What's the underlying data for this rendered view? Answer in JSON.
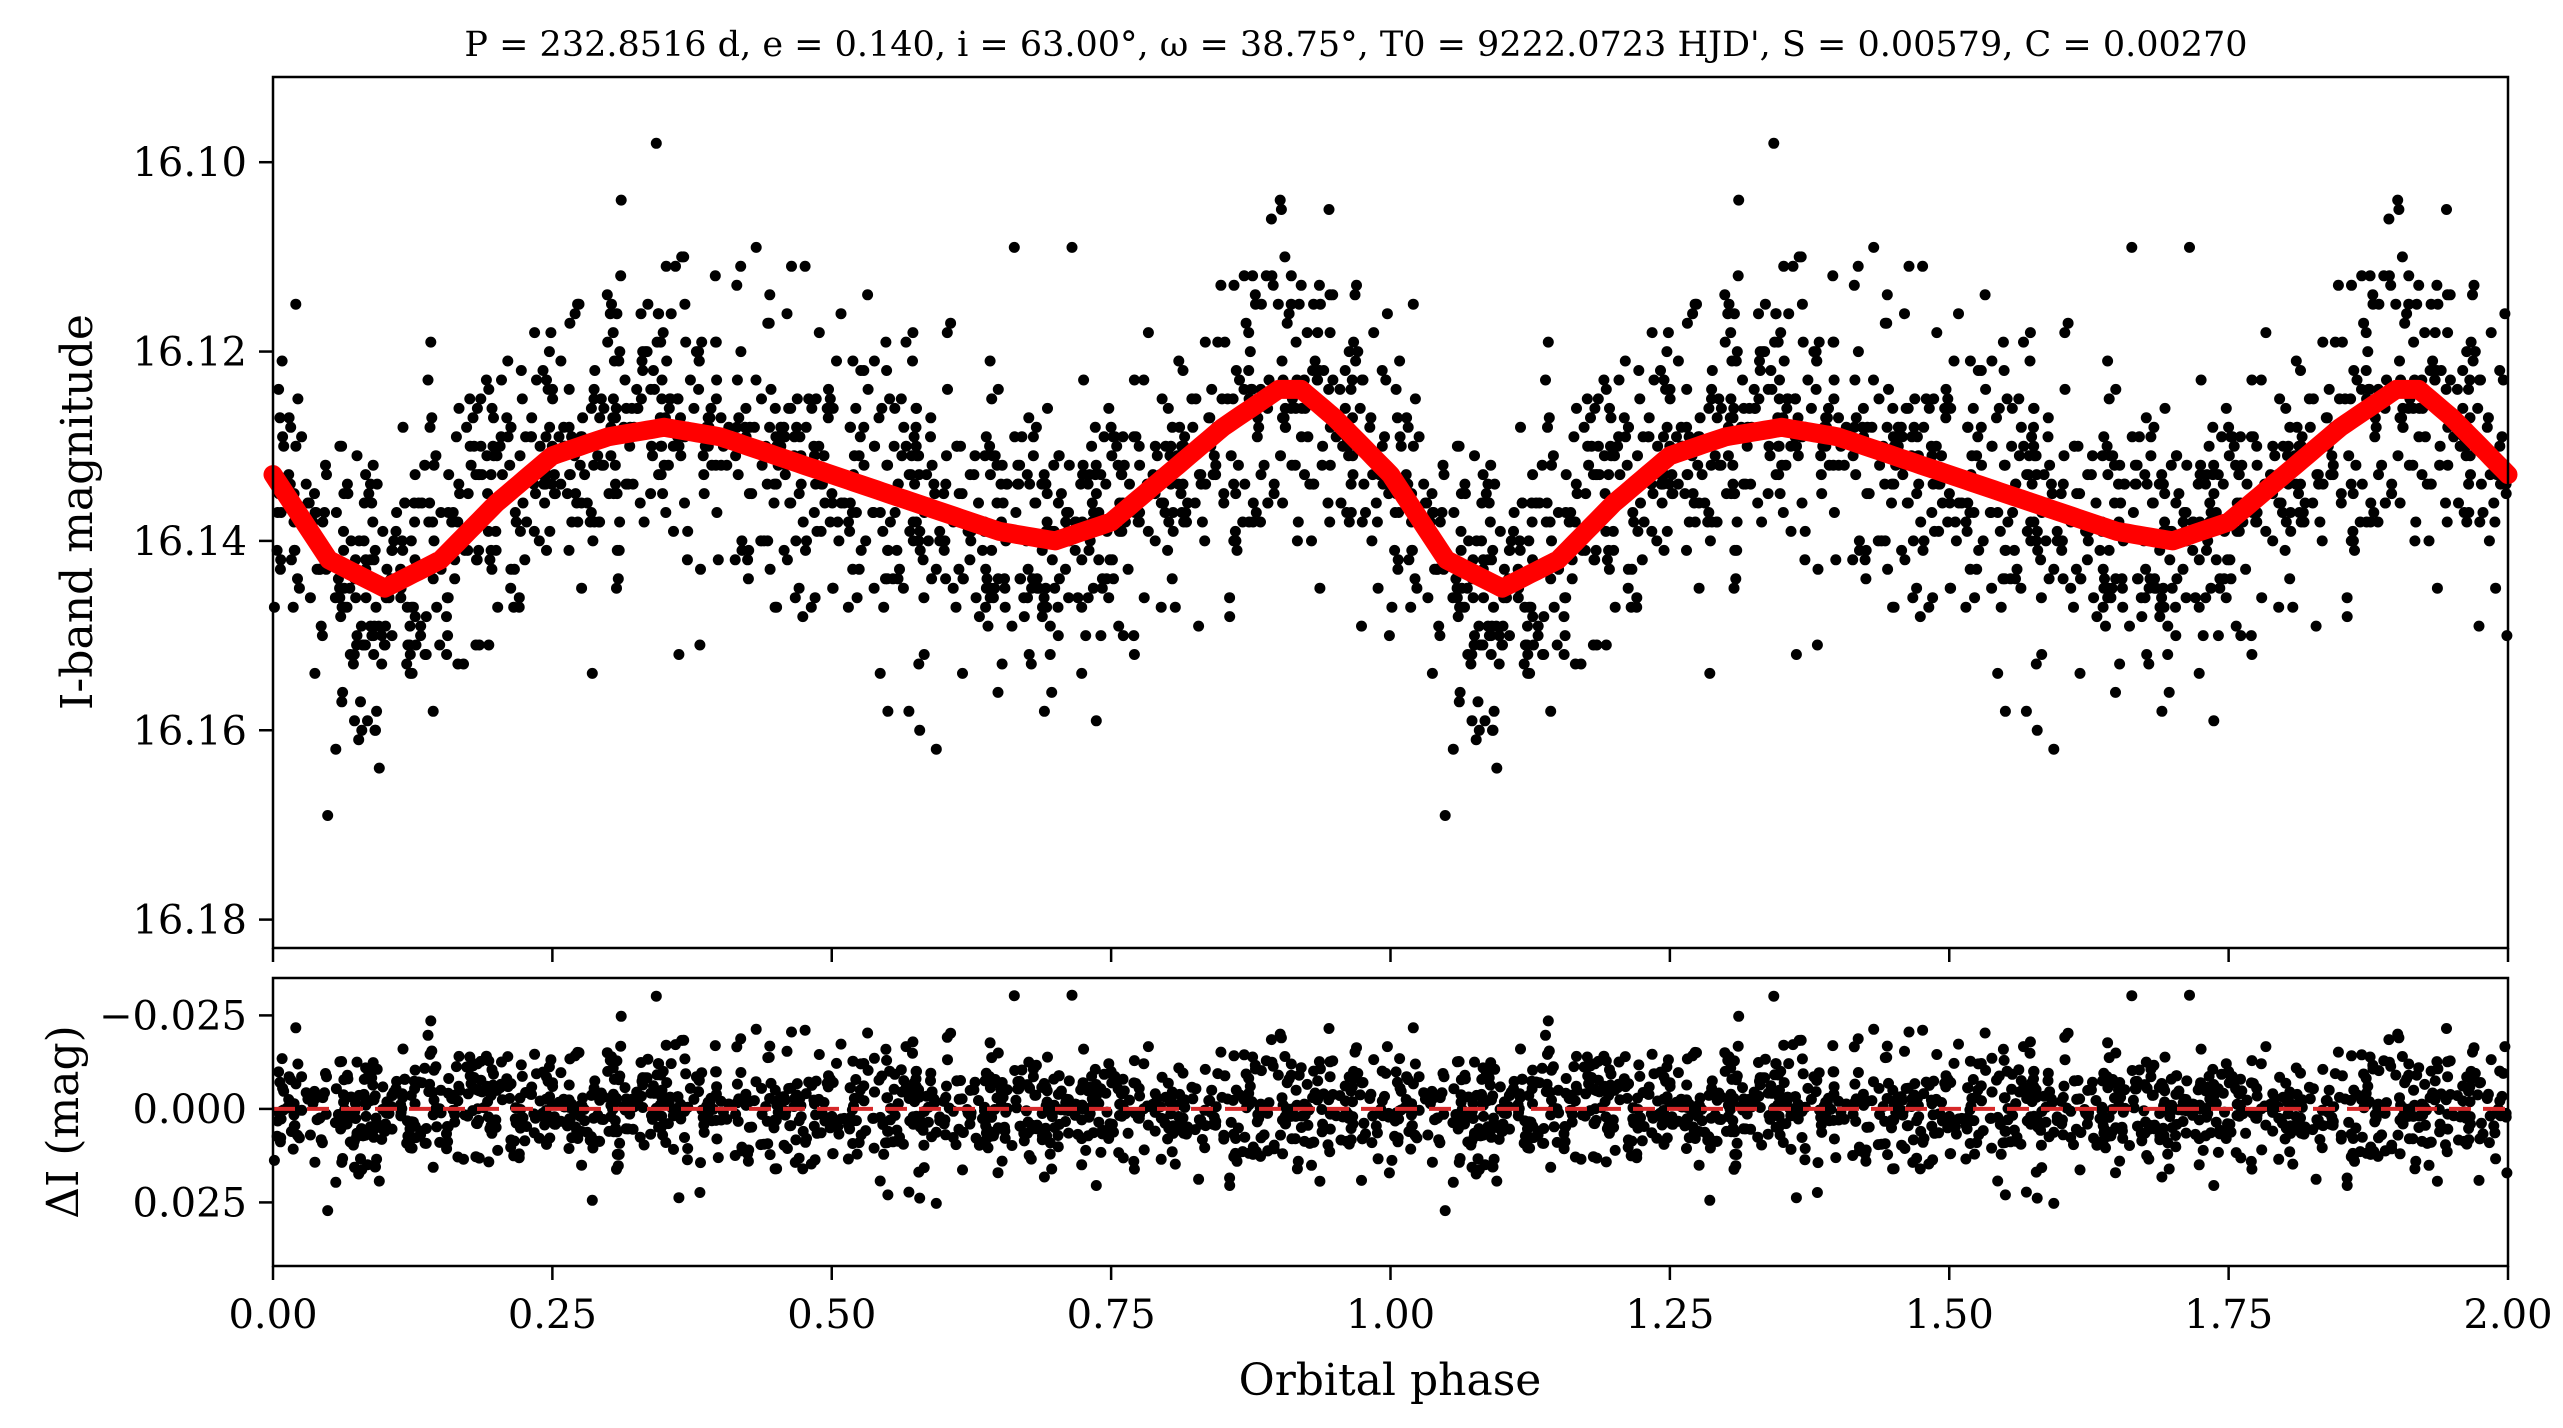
{
  "chart_data": [
    {
      "type": "scatter",
      "title": "P = 232.8516 d, e = 0.140, i = 63.00°, ω = 38.75°, T0 = 9222.0723 HJD', S = 0.00579, C = 0.00270",
      "xlabel": "",
      "ylabel": "I-band magnitude",
      "xlim": [
        0.0,
        2.0
      ],
      "ylim": [
        16.183,
        16.091
      ],
      "y_inverted": true,
      "grid": false,
      "yticks": [
        "16.10",
        "16.12",
        "16.14",
        "16.16",
        "16.18"
      ],
      "ytick_values": [
        16.1,
        16.12,
        16.14,
        16.16,
        16.18
      ],
      "colors": {
        "points": "#000000",
        "model": "#ff0000"
      },
      "model_curve": {
        "x": [
          0.0,
          0.05,
          0.1,
          0.15,
          0.2,
          0.25,
          0.3,
          0.35,
          0.4,
          0.45,
          0.5,
          0.55,
          0.6,
          0.65,
          0.7,
          0.75,
          0.8,
          0.85,
          0.9,
          0.92,
          0.95,
          1.0,
          1.05,
          1.1,
          1.15,
          1.2,
          1.25,
          1.3,
          1.35,
          1.4,
          1.45,
          1.5,
          1.55,
          1.6,
          1.65,
          1.7,
          1.75,
          1.8,
          1.85,
          1.9,
          1.92,
          1.95,
          2.0
        ],
        "y": [
          16.133,
          16.142,
          16.145,
          16.142,
          16.136,
          16.131,
          16.129,
          16.128,
          16.129,
          16.131,
          16.133,
          16.135,
          16.137,
          16.139,
          16.14,
          16.138,
          16.133,
          16.128,
          16.124,
          16.124,
          16.127,
          16.133,
          16.142,
          16.145,
          16.142,
          16.136,
          16.131,
          16.129,
          16.128,
          16.129,
          16.131,
          16.133,
          16.135,
          16.137,
          16.139,
          16.14,
          16.138,
          16.133,
          16.128,
          16.124,
          16.124,
          16.127,
          16.133
        ]
      },
      "observations": {
        "count": 2400,
        "scatter_sigma_mag": 0.008
      }
    },
    {
      "type": "scatter",
      "xlabel": "Orbital phase",
      "ylabel": "ΔI (mag)",
      "xlim": [
        0.0,
        2.0
      ],
      "ylim": [
        0.042,
        -0.035
      ],
      "y_inverted": true,
      "grid": false,
      "xticks": [
        "0.00",
        "0.25",
        "0.50",
        "0.75",
        "1.00",
        "1.25",
        "1.50",
        "1.75",
        "2.00"
      ],
      "xtick_values": [
        0.0,
        0.25,
        0.5,
        0.75,
        1.0,
        1.25,
        1.5,
        1.75,
        2.0
      ],
      "yticks": [
        "−0.025",
        "0.000",
        "0.025"
      ],
      "ytick_values": [
        -0.025,
        0.0,
        0.025
      ],
      "colors": {
        "points": "#000000",
        "zero_line": "#d62728"
      },
      "reference_line": {
        "y": 0.0,
        "style": "dashed"
      },
      "observations": {
        "count": 2400,
        "scatter_sigma_mag": 0.008
      }
    }
  ]
}
